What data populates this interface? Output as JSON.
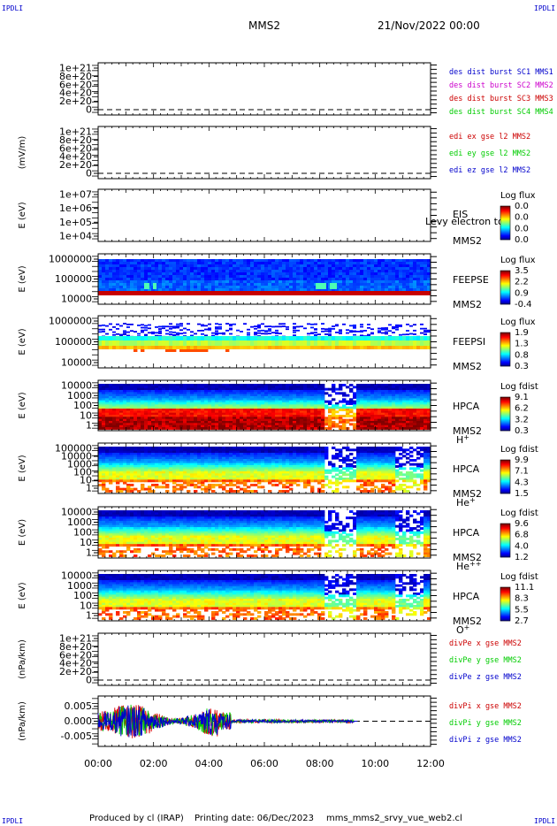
{
  "corner_tl": "IPDLI",
  "corner_tr": "IPDLI",
  "corner_bl": "IPDLI",
  "corner_br": "IPDLI",
  "header": {
    "spacecraft": "MMS2",
    "date": "21/Nov/2022 00:00"
  },
  "footer": {
    "producer": "Produced by cl (IRAP)",
    "printing": "Printing date: 06/Dec/2023",
    "file": "mms_mms2_srvy_vue_web2.cl"
  },
  "chart_data": [
    {
      "type": "line",
      "panel": "des_dist_burst",
      "ylabel": "",
      "ticks": [
        "1e+21",
        "8e+20",
        "6e+20",
        "4e+20",
        "2e+20",
        "0"
      ],
      "ylim": [
        0,
        1.1e+21
      ],
      "legend": [
        {
          "text": "des dist burst SC1 MMS1",
          "color": "#0000cc"
        },
        {
          "text": "des dist burst SC2 MMS2",
          "color": "#cc00cc"
        },
        {
          "text": "des dist burst SC3 MMS3",
          "color": "#cc0000"
        },
        {
          "text": "des dist burst SC4 MMS4",
          "color": "#00cc00"
        }
      ],
      "series": []
    },
    {
      "type": "line",
      "panel": "edi_e_gse",
      "ylabel": "(mV/m)",
      "ticks": [
        "1e+21",
        "8e+20",
        "6e+20",
        "4e+20",
        "2e+20",
        "0"
      ],
      "ylim": [
        0,
        1.1e+21
      ],
      "legend": [
        {
          "text": "edi ex gse l2 MMS2",
          "color": "#cc0000"
        },
        {
          "text": "edi ey gse l2 MMS2",
          "color": "#00cc00"
        },
        {
          "text": "edi ez gse l2 MMS2",
          "color": "#0000cc"
        }
      ],
      "series": []
    },
    {
      "type": "heatmap",
      "panel": "eis",
      "ylabel": "E (eV)",
      "ticks": [
        "1e+07",
        "1e+06",
        "1e+05",
        "1e+04"
      ],
      "scale": "log",
      "labels": [
        "EIS",
        "MMS2"
      ],
      "overlay": "Levy electron to",
      "cbar_title": "Log flux",
      "cbar_ticks": [
        "0.0",
        "0.0",
        "0.0",
        "0.0"
      ]
    },
    {
      "type": "heatmap",
      "panel": "feeps_e",
      "ylabel": "E (eV)",
      "ticks": [
        "1000000",
        "100000",
        "10000"
      ],
      "scale": "log",
      "labels": [
        "FEEPSE",
        "MMS2"
      ],
      "cbar_title": "Log flux",
      "cbar_ticks": [
        "3.5",
        "2.2",
        "0.9",
        "-0.4"
      ]
    },
    {
      "type": "heatmap",
      "panel": "feeps_i",
      "ylabel": "E (eV)",
      "ticks": [
        "1000000",
        "100000",
        "10000"
      ],
      "scale": "log",
      "labels": [
        "FEEPSI",
        "MMS2"
      ],
      "cbar_title": "Log flux",
      "cbar_ticks": [
        "1.9",
        "1.3",
        "0.8",
        "0.3"
      ]
    },
    {
      "type": "heatmap",
      "panel": "hpca_h",
      "ylabel": "E (eV)",
      "ticks": [
        "10000",
        "1000",
        "100",
        "10",
        "1"
      ],
      "scale": "log",
      "labels": [
        "HPCA",
        "MMS2",
        "H"
      ],
      "species_sup": "+",
      "cbar_title": "Log fdist",
      "cbar_ticks": [
        "9.1",
        "6.2",
        "3.2",
        "0.3"
      ]
    },
    {
      "type": "heatmap",
      "panel": "hpca_he",
      "ylabel": "E (eV)",
      "ticks": [
        "100000",
        "10000",
        "1000",
        "100",
        "10",
        "1"
      ],
      "scale": "log",
      "labels": [
        "HPCA",
        "MMS2",
        "He"
      ],
      "species_sup": "+",
      "cbar_title": "Log fdist",
      "cbar_ticks": [
        "9.9",
        "7.1",
        "4.3",
        "1.5"
      ]
    },
    {
      "type": "heatmap",
      "panel": "hpca_hepp",
      "ylabel": "E (eV)",
      "ticks": [
        "10000",
        "1000",
        "100",
        "10",
        "1"
      ],
      "scale": "log",
      "labels": [
        "HPCA",
        "MMS2",
        "He"
      ],
      "species_sup": "++",
      "cbar_title": "Log fdist",
      "cbar_ticks": [
        "9.6",
        "6.8",
        "4.0",
        "1.2"
      ]
    },
    {
      "type": "heatmap",
      "panel": "hpca_o",
      "ylabel": "E (eV)",
      "ticks": [
        "10000",
        "1000",
        "100",
        "10",
        "1"
      ],
      "scale": "log",
      "labels": [
        "HPCA",
        "MMS2",
        "O"
      ],
      "species_sup": "+",
      "cbar_title": "Log fdist",
      "cbar_ticks": [
        "11.1",
        "8.3",
        "5.5",
        "2.7"
      ]
    },
    {
      "type": "line",
      "panel": "divpe",
      "ylabel": "(nPa/km)",
      "ticks": [
        "1e+21",
        "8e+20",
        "6e+20",
        "4e+20",
        "2e+20",
        "0"
      ],
      "ylim": [
        0,
        1.1e+21
      ],
      "legend": [
        {
          "text": "divPe x gse MMS2",
          "color": "#cc0000"
        },
        {
          "text": "divPe y gse MMS2",
          "color": "#00cc00"
        },
        {
          "text": "divPe z gse MMS2",
          "color": "#0000cc"
        }
      ],
      "series": []
    },
    {
      "type": "line",
      "panel": "divpi",
      "ylabel": "(nPa/km)",
      "ticks": [
        "0.005",
        "0.000",
        "-0.005"
      ],
      "ylim": [
        -0.0085,
        0.0085
      ],
      "legend": [
        {
          "text": "divPi x gse MMS2",
          "color": "#cc0000"
        },
        {
          "text": "divPi y gse MMS2",
          "color": "#00cc00"
        },
        {
          "text": "divPi z gse MMS2",
          "color": "#0000cc"
        }
      ],
      "series": [
        {
          "name": "divPi x gse MMS2",
          "color": "#dd0000"
        },
        {
          "name": "divPi y gse MMS2",
          "color": "#00cc00"
        },
        {
          "name": "divPi z gse MMS2",
          "color": "#0000cc"
        }
      ]
    }
  ],
  "xaxis": {
    "ticks": [
      "00:00",
      "02:00",
      "04:00",
      "06:00",
      "08:00",
      "10:00",
      "12:00"
    ],
    "range_hours": [
      0,
      12
    ]
  }
}
